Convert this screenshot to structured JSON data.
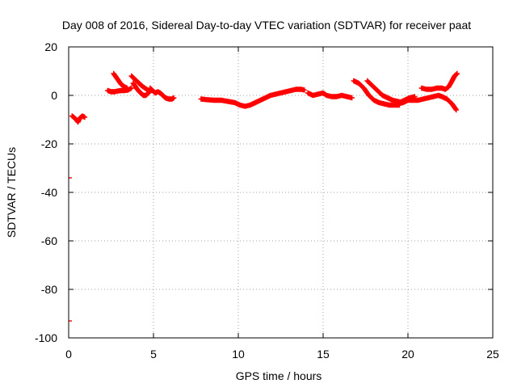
{
  "chart_data": {
    "type": "scatter",
    "title": "Day 008 of 2016, Sidereal Day-to-day VTEC variation (SDTVAR) for receiver paat",
    "xlabel": "GPS time / hours",
    "ylabel": "SDTVAR / TECUs",
    "xlim": [
      0,
      25
    ],
    "ylim": [
      -100,
      20
    ],
    "xticks": [
      0,
      5,
      10,
      15,
      20,
      25
    ],
    "yticks": [
      -100,
      -80,
      -60,
      -40,
      -20,
      0,
      20
    ],
    "xtick_labels": [
      "0",
      "5",
      "10",
      "15",
      "20",
      "25"
    ],
    "ytick_labels": [
      "-100",
      "-80",
      "-60",
      "-40",
      "-20",
      "0",
      "20"
    ],
    "grid": true,
    "marker": "+",
    "series": [
      {
        "name": "SDTVAR",
        "color": "#ff0000",
        "segments": [
          [
            [
              0.2,
              -8.5
            ],
            [
              0.3,
              -9
            ],
            [
              0.45,
              -10
            ],
            [
              0.55,
              -11
            ],
            [
              0.65,
              -9.5
            ],
            [
              0.8,
              -8.5
            ],
            [
              0.95,
              -9
            ]
          ],
          [
            [
              2.3,
              2
            ],
            [
              2.5,
              1.5
            ],
            [
              2.7,
              1.5
            ],
            [
              2.9,
              1.8
            ],
            [
              3.1,
              2
            ],
            [
              3.3,
              2
            ],
            [
              3.5,
              2.2
            ],
            [
              3.7,
              3
            ]
          ],
          [
            [
              2.65,
              9
            ],
            [
              2.8,
              7.5
            ],
            [
              2.95,
              6
            ],
            [
              3.1,
              4.5
            ],
            [
              3.3,
              3.5
            ],
            [
              3.45,
              3
            ]
          ],
          [
            [
              3.7,
              8
            ],
            [
              3.85,
              7
            ],
            [
              4.0,
              6
            ],
            [
              4.15,
              5
            ],
            [
              4.3,
              4
            ],
            [
              4.5,
              3
            ],
            [
              4.7,
              2
            ],
            [
              4.9,
              2
            ]
          ],
          [
            [
              3.8,
              5
            ],
            [
              3.95,
              3.5
            ],
            [
              4.1,
              2
            ],
            [
              4.25,
              1
            ],
            [
              4.4,
              0
            ],
            [
              4.55,
              0
            ],
            [
              4.7,
              1
            ]
          ],
          [
            [
              4.8,
              3
            ],
            [
              4.95,
              2
            ],
            [
              5.1,
              1
            ],
            [
              5.25,
              1.5
            ],
            [
              5.4,
              1
            ],
            [
              5.55,
              0
            ],
            [
              5.7,
              -1
            ],
            [
              5.9,
              -1.5
            ],
            [
              6.1,
              -1.5
            ],
            [
              6.2,
              -1
            ]
          ],
          [
            [
              7.8,
              -1.5
            ],
            [
              8.2,
              -1.8
            ],
            [
              8.6,
              -2
            ],
            [
              9.0,
              -2
            ],
            [
              9.4,
              -2.5
            ],
            [
              9.8,
              -3
            ],
            [
              10.1,
              -4
            ],
            [
              10.4,
              -4.5
            ],
            [
              10.7,
              -4
            ],
            [
              11.0,
              -3
            ],
            [
              11.3,
              -2
            ],
            [
              11.6,
              -1
            ],
            [
              11.9,
              0
            ],
            [
              12.2,
              0.5
            ],
            [
              12.5,
              1
            ],
            [
              12.8,
              1.5
            ],
            [
              13.1,
              2
            ],
            [
              13.4,
              2.5
            ],
            [
              13.7,
              2.5
            ],
            [
              13.9,
              2.2
            ]
          ],
          [
            [
              14.1,
              1
            ],
            [
              14.4,
              0
            ],
            [
              14.7,
              0.5
            ],
            [
              15.0,
              1
            ],
            [
              15.2,
              0
            ],
            [
              15.5,
              -0.5
            ],
            [
              15.8,
              -0.5
            ],
            [
              16.1,
              0
            ],
            [
              16.4,
              -0.5
            ],
            [
              16.7,
              -1
            ]
          ],
          [
            [
              16.8,
              6
            ],
            [
              17.1,
              5
            ],
            [
              17.4,
              3
            ],
            [
              17.7,
              0
            ],
            [
              18.0,
              -2
            ],
            [
              18.3,
              -3
            ],
            [
              18.6,
              -3.5
            ],
            [
              18.9,
              -4
            ],
            [
              19.2,
              -4
            ],
            [
              19.5,
              -4
            ]
          ],
          [
            [
              17.6,
              6
            ],
            [
              17.9,
              4
            ],
            [
              18.2,
              2
            ],
            [
              18.5,
              0
            ],
            [
              18.8,
              -1
            ],
            [
              19.1,
              -2
            ],
            [
              19.4,
              -2.5
            ],
            [
              19.7,
              -3
            ],
            [
              20.0,
              -2
            ],
            [
              20.3,
              -2
            ],
            [
              20.6,
              -2
            ],
            [
              20.9,
              -1.5
            ],
            [
              21.2,
              -1
            ],
            [
              21.5,
              -0.5
            ],
            [
              21.8,
              0
            ],
            [
              22.0,
              -0.5
            ],
            [
              22.3,
              -1.5
            ],
            [
              22.6,
              -3.5
            ],
            [
              22.85,
              -6
            ]
          ],
          [
            [
              19.5,
              -3
            ],
            [
              19.8,
              -2
            ],
            [
              20.1,
              -1
            ],
            [
              20.4,
              -0.5
            ]
          ],
          [
            [
              20.8,
              3
            ],
            [
              21.1,
              2.5
            ],
            [
              21.4,
              2.5
            ],
            [
              21.7,
              3
            ],
            [
              22.0,
              3
            ],
            [
              22.2,
              2.5
            ],
            [
              22.4,
              3.5
            ],
            [
              22.6,
              6
            ],
            [
              22.75,
              8
            ],
            [
              22.9,
              9
            ]
          ]
        ],
        "isolated": [
          [
            0,
            -34
          ],
          [
            0,
            -93
          ]
        ]
      }
    ]
  }
}
